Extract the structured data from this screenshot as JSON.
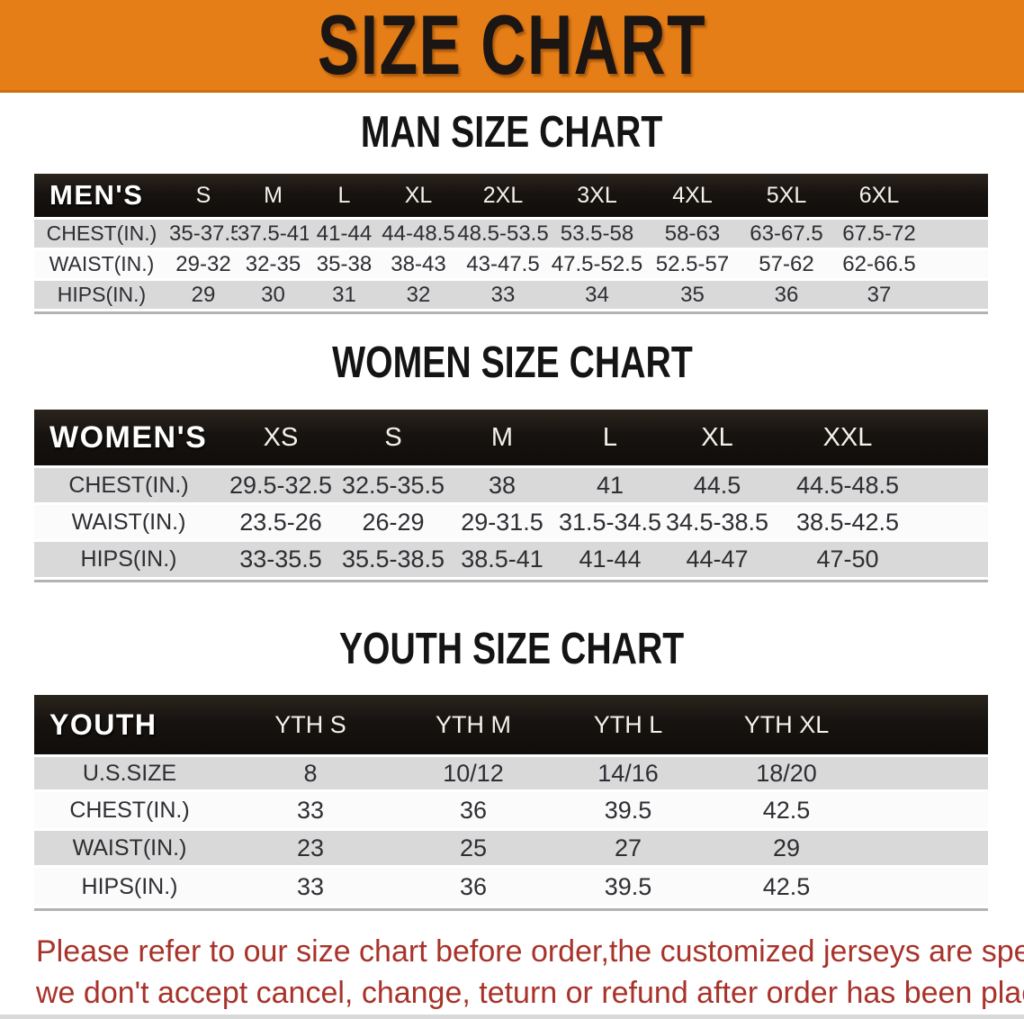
{
  "banner": {
    "title": "SIZE CHART",
    "bg_color": "#E67E17",
    "text_color": "#1B1613"
  },
  "sections": [
    {
      "title": "MAN SIZE CHART",
      "table": {
        "group_label": "MEN'S",
        "size_headers": [
          "S",
          "M",
          "L",
          "XL",
          "2XL",
          "3XL",
          "4XL",
          "5XL",
          "6XL"
        ],
        "rows": [
          {
            "label": "CHEST(IN.)",
            "values": [
              "35-37.5",
              "37.5-41",
              "41-44",
              "44-48.5",
              "48.5-53.5",
              "53.5-58",
              "58-63",
              "63-67.5",
              "67.5-72"
            ]
          },
          {
            "label": "WAIST(IN.)",
            "values": [
              "29-32",
              "32-35",
              "35-38",
              "38-43",
              "43-47.5",
              "47.5-52.5",
              "52.5-57",
              "57-62",
              "62-66.5"
            ]
          },
          {
            "label": "HIPS(IN.)",
            "values": [
              "29",
              "30",
              "31",
              "32",
              "33",
              "34",
              "35",
              "36",
              "37"
            ]
          }
        ]
      }
    },
    {
      "title": "WOMEN SIZE CHART",
      "table": {
        "group_label": "WOMEN'S",
        "size_headers": [
          "XS",
          "S",
          "M",
          "L",
          "XL",
          "XXL"
        ],
        "rows": [
          {
            "label": "CHEST(IN.)",
            "values": [
              "29.5-32.5",
              "32.5-35.5",
              "38",
              "41",
              "44.5",
              "44.5-48.5"
            ]
          },
          {
            "label": "WAIST(IN.)",
            "values": [
              "23.5-26",
              "26-29",
              "29-31.5",
              "31.5-34.5",
              "34.5-38.5",
              "38.5-42.5"
            ]
          },
          {
            "label": "HIPS(IN.)",
            "values": [
              "33-35.5",
              "35.5-38.5",
              "38.5-41",
              "41-44",
              "44-47",
              "47-50"
            ]
          }
        ]
      }
    },
    {
      "title": "YOUTH SIZE CHART",
      "table": {
        "group_label": "YOUTH",
        "size_headers": [
          "YTH S",
          "YTH M",
          "YTH L",
          "YTH XL"
        ],
        "rows": [
          {
            "label": "U.S.SIZE",
            "values": [
              "8",
              "10/12",
              "14/16",
              "18/20"
            ]
          },
          {
            "label": "CHEST(IN.)",
            "values": [
              "33",
              "36",
              "39.5",
              "42.5"
            ]
          },
          {
            "label": "WAIST(IN.)",
            "values": [
              "23",
              "25",
              "27",
              "29"
            ]
          },
          {
            "label": "HIPS(IN.)",
            "values": [
              "33",
              "36",
              "39.5",
              "42.5"
            ]
          }
        ]
      }
    }
  ],
  "disclaimer": {
    "line1": "Please refer to our size chart before order,the customized jerseys are special products,",
    "line2": "we don't accept cancel, change, teturn or refund after order has been placed!",
    "color": "#A8332A"
  }
}
